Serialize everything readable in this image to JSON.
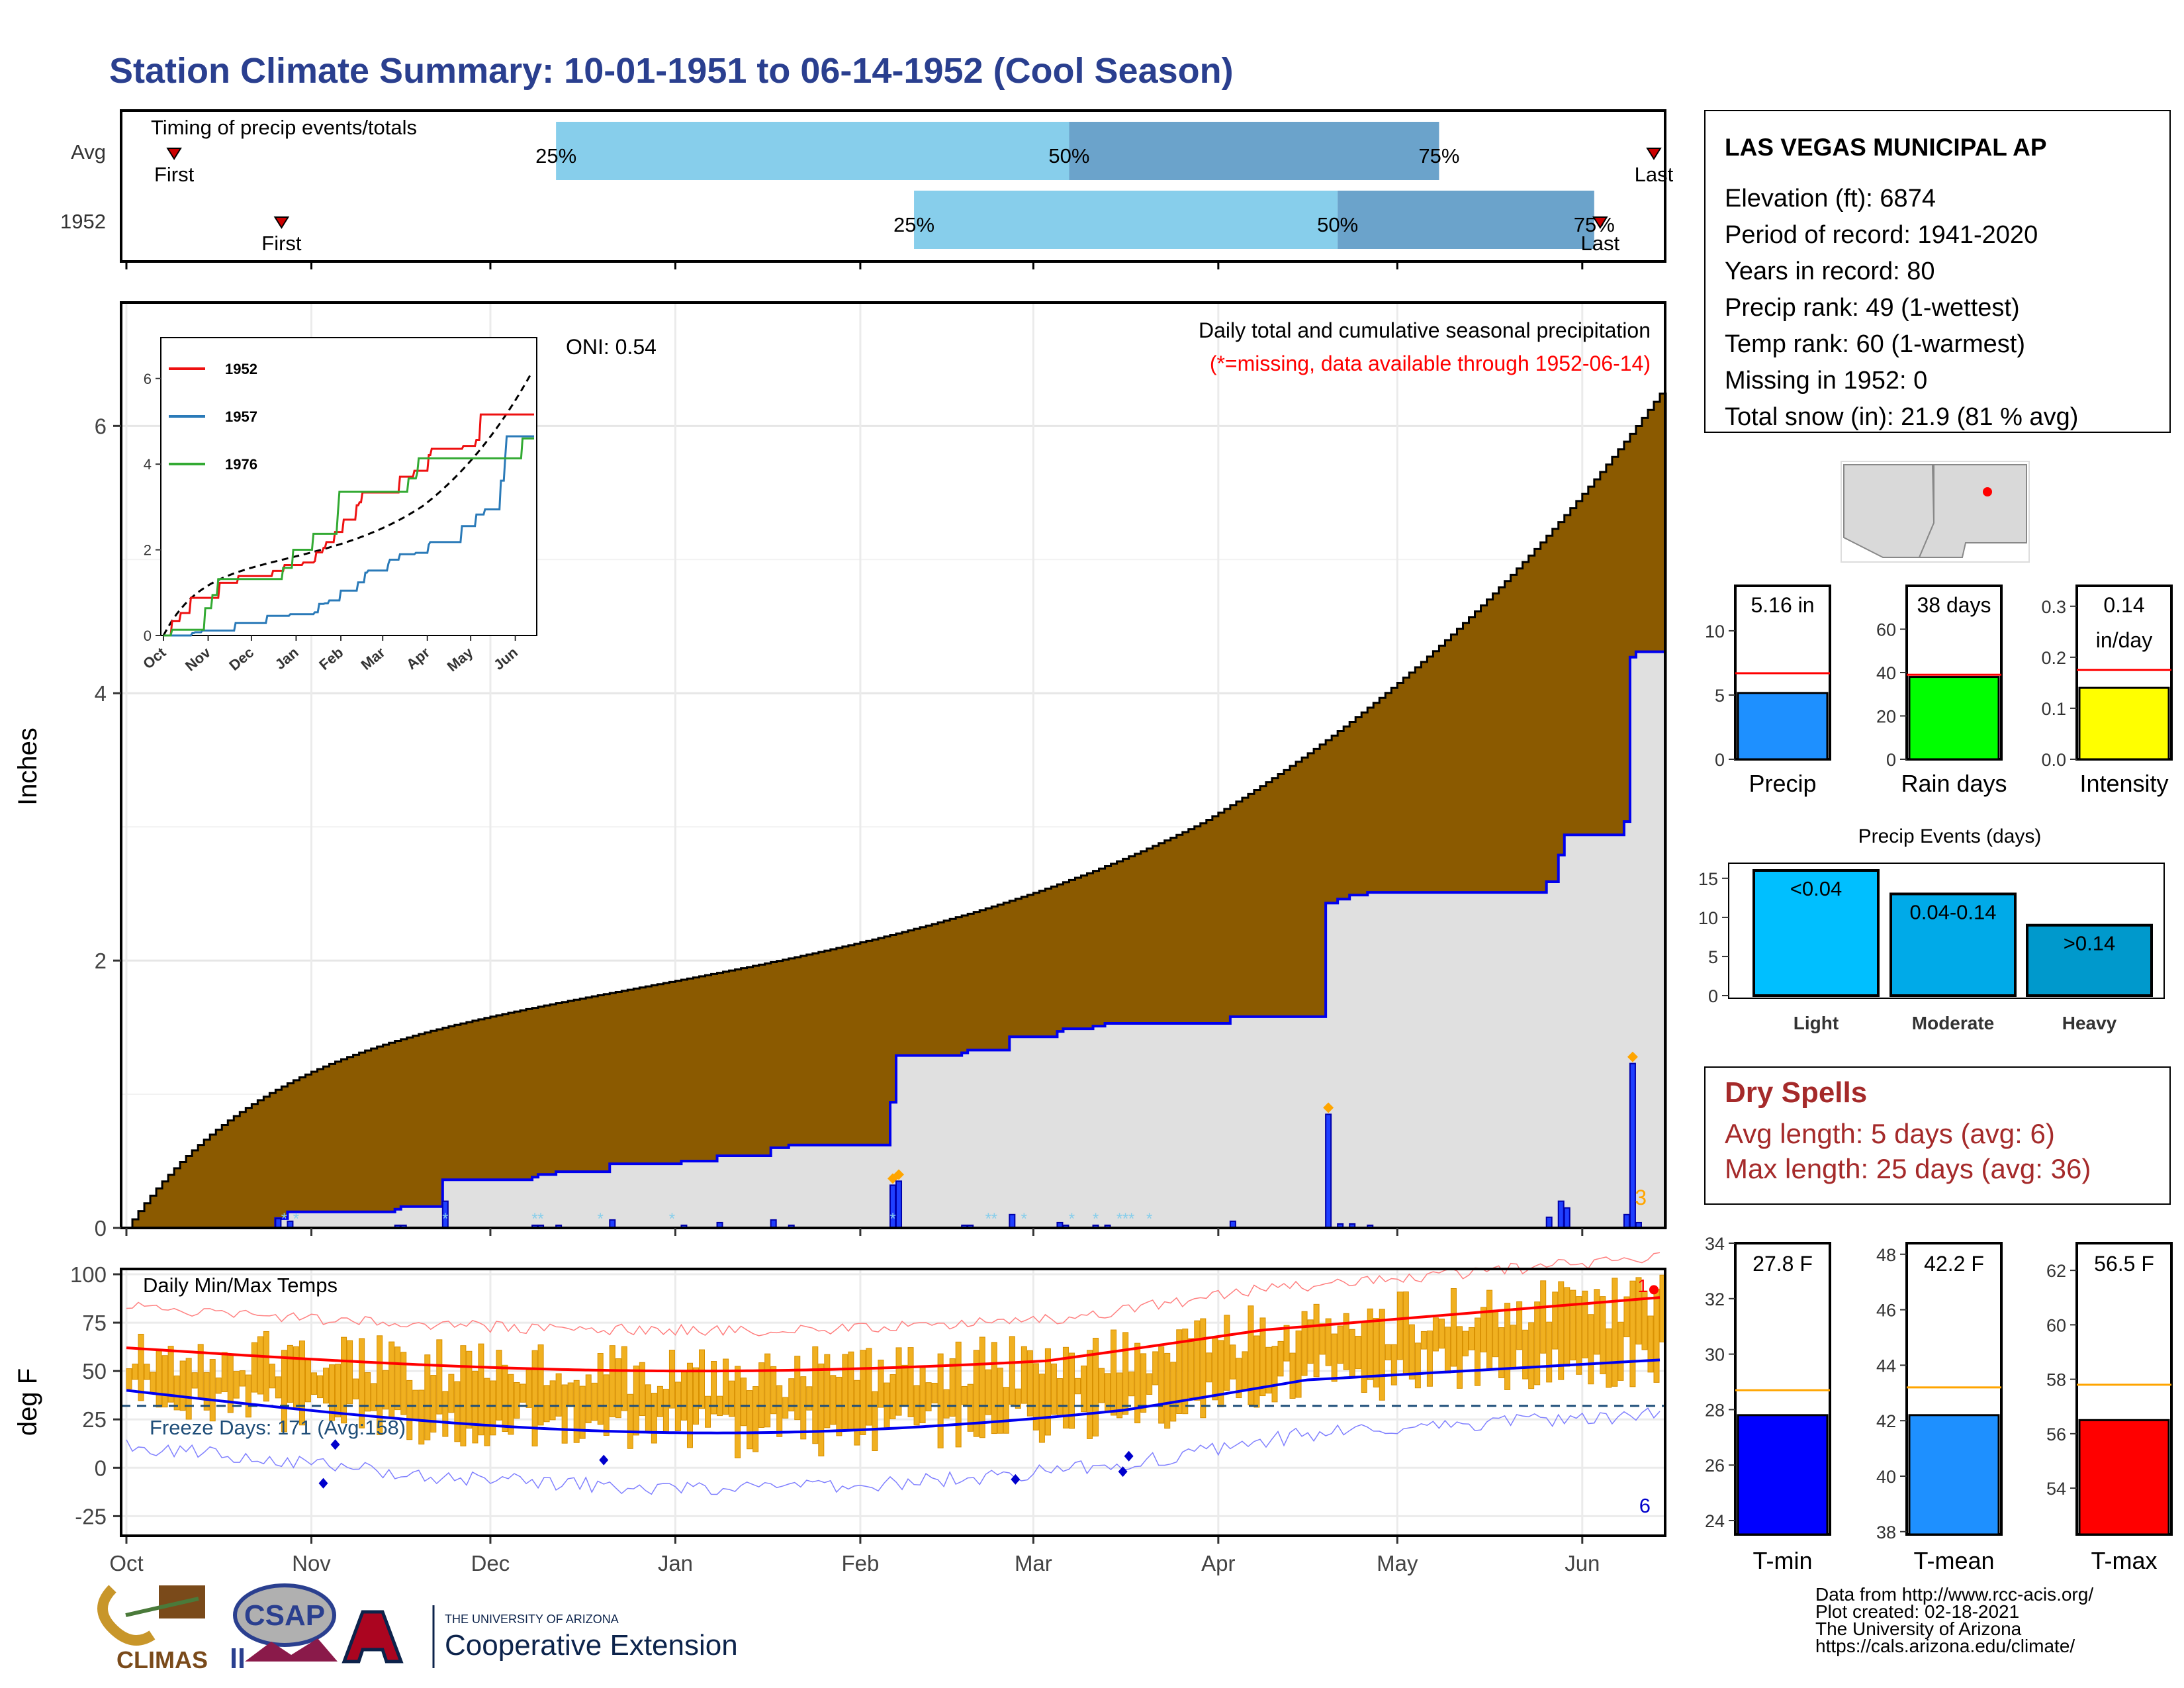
{
  "title": "Station Climate Summary: 10-01-1951 to 06-14-1952 (Cool Season)",
  "timing": {
    "label": "Timing of precip events/totals",
    "rows": [
      {
        "name": "Avg",
        "first": "First",
        "p25": "25%",
        "p50": "50%",
        "p75": "75%",
        "last": "Last",
        "first_day": 8,
        "p25_day": 72,
        "p50_day": 158,
        "p75_day": 220,
        "last_day": 256
      },
      {
        "name": "1952",
        "first": "First",
        "p25": "25%",
        "p50": "50%",
        "p75": "75%",
        "last": "Last",
        "first_day": 26,
        "p25_day": 132,
        "p50_day": 203,
        "p75_day": 246,
        "last_day": 247
      }
    ]
  },
  "main_chart": {
    "ylabel": "Inches",
    "yticks": [
      "0",
      "2",
      "4",
      "6"
    ],
    "xticks": [
      "Oct",
      "Nov",
      "Dec",
      "Jan",
      "Feb",
      "Mar",
      "Apr",
      "May",
      "Jun"
    ],
    "oni": "ONI: 0.54",
    "caption": "Daily total and cumulative seasonal precipitation",
    "missing_note": "(*=missing, data available through 1952-06-14)",
    "corner_count": "3",
    "colors": {
      "avg_fill": "#8B5A00",
      "year_fill": "#e0e0e0",
      "year_line": "#0000ee",
      "note": "#ff0000",
      "marker": "#ffa500"
    }
  },
  "inset": {
    "yticks": [
      "0",
      "2",
      "4",
      "6"
    ],
    "xticks": [
      "Oct",
      "Nov",
      "Dec",
      "Jan",
      "Feb",
      "Mar",
      "Apr",
      "May",
      "Jun"
    ],
    "legend": [
      {
        "name": "1952",
        "color": "#ee1111"
      },
      {
        "name": "1957",
        "color": "#2a7ab8"
      },
      {
        "name": "1976",
        "color": "#33aa33"
      }
    ]
  },
  "temp_chart": {
    "label": "Daily Min/Max Temps",
    "ylabel": "deg F",
    "yticks": [
      "100",
      "75",
      "50",
      "25",
      "0",
      "-25"
    ],
    "xticks": [
      "Oct",
      "Nov",
      "Dec",
      "Jan",
      "Feb",
      "Mar",
      "Apr",
      "May",
      "Jun"
    ],
    "freeze": "Freeze Days: 171 (Avg:158)",
    "count_top": "1",
    "count_bottom": "6"
  },
  "station": {
    "name": "LAS VEGAS MUNICIPAL AP",
    "lines": [
      "Elevation (ft): 6874",
      "Period of record: 1941-2020",
      "Years in record: 80",
      "Precip rank: 49 (1-wettest)",
      "Temp rank: 60 (1-warmest)",
      "Missing in 1952: 0",
      "Total snow (in): 21.9 (81 % avg)"
    ]
  },
  "mini_bars": [
    {
      "label": "Precip",
      "value_text": "5.16 in",
      "value": 5.16,
      "avg": 6.7,
      "ymax": 13.5,
      "ticks": [
        "0",
        "5",
        "10"
      ],
      "tickvals": [
        0,
        5,
        10
      ],
      "color": "#1e90ff"
    },
    {
      "label": "Rain days",
      "value_text": "38 days",
      "value": 38,
      "avg": 39,
      "ymax": 80,
      "ticks": [
        "0",
        "20",
        "40",
        "60"
      ],
      "tickvals": [
        0,
        20,
        40,
        60
      ],
      "color": "#00ff00"
    },
    {
      "label": "Intensity",
      "value_text": "0.14",
      "value_text2": "in/day",
      "value": 0.14,
      "avg": 0.175,
      "ymax": 0.34,
      "ticks": [
        "0.0",
        "0.1",
        "0.2",
        "0.3"
      ],
      "tickvals": [
        0,
        0.1,
        0.2,
        0.3
      ],
      "color": "#ffff00"
    }
  ],
  "precip_events": {
    "title": "Precip Events (days)",
    "yticks": [
      "0",
      "5",
      "10",
      "15"
    ],
    "bars": [
      {
        "category": "Light",
        "label": "<0.04",
        "value": 16,
        "color": "#00bfff"
      },
      {
        "category": "Moderate",
        "label": "0.04-0.14",
        "value": 13,
        "color": "#00aae8"
      },
      {
        "category": "Heavy",
        "label": ">0.14",
        "value": 9,
        "color": "#0099cc"
      }
    ]
  },
  "dry_spells": {
    "title": "Dry Spells",
    "avg": "Avg length: 5 days (avg: 6)",
    "max": "Max length: 25 days (avg: 36)"
  },
  "temp_bars": [
    {
      "label": "T-min",
      "value_text": "27.8 F",
      "value": 27.8,
      "avg": 28.7,
      "ymin": 23.5,
      "ymax": 34,
      "ticks": [
        "24",
        "26",
        "28",
        "30",
        "32",
        "34"
      ],
      "tickvals": [
        24,
        26,
        28,
        30,
        32,
        34
      ],
      "color": "#0000ff"
    },
    {
      "label": "T-mean",
      "value_text": "42.2 F",
      "value": 42.2,
      "avg": 43.2,
      "ymin": 37.9,
      "ymax": 48.4,
      "ticks": [
        "38",
        "40",
        "42",
        "44",
        "46",
        "48"
      ],
      "tickvals": [
        38,
        40,
        42,
        44,
        46,
        48
      ],
      "color": "#1e90ff"
    },
    {
      "label": "T-max",
      "value_text": "56.5 F",
      "value": 56.5,
      "avg": 57.8,
      "ymin": 52.3,
      "ymax": 63,
      "ticks": [
        "54",
        "56",
        "58",
        "60",
        "62"
      ],
      "tickvals": [
        54,
        56,
        58,
        60,
        62
      ],
      "color": "#ff0000"
    }
  ],
  "logos": {
    "climas": "CLIMAS",
    "csap": "CSAP",
    "ua_small": "THE UNIVERSITY OF ARIZONA",
    "ua_big": "Cooperative Extension"
  },
  "footer": [
    "Data from http://www.rcc-acis.org/",
    "Plot created: 02-18-2021",
    "The University of Arizona",
    "https://cals.arizona.edu/climate/"
  ]
}
